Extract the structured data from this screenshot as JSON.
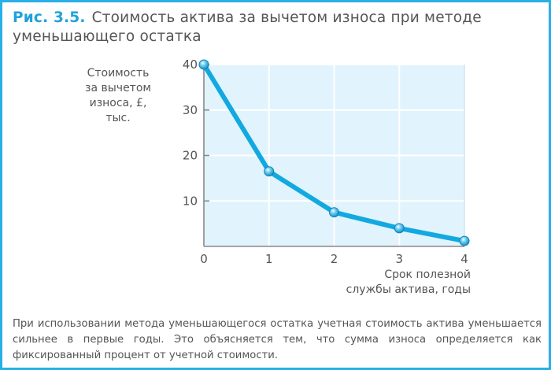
{
  "figure": {
    "number": "Рис. 3.5.",
    "title": "Стоимость актива за вычетом износа при методе уменьшающего остатка"
  },
  "colors": {
    "accent": "#29b0e6",
    "line": "#12a9e0",
    "plot_bg": "#e1f3fc",
    "grid": "#ffffff",
    "axis": "#888888",
    "text": "#555555"
  },
  "chart_data": {
    "type": "line",
    "title": "Стоимость актива за вычетом износа при методе уменьшающего остатка",
    "xlabel": "Срок полезной службы актива, годы",
    "ylabel": "Стоимость за вычетом износа, £, тыс.",
    "x": [
      0,
      1,
      2,
      3,
      4
    ],
    "series": [
      {
        "name": "Стоимость за вычетом износа",
        "values": [
          40,
          16.5,
          7.5,
          4,
          1.2
        ]
      }
    ],
    "x_ticks": [
      "0",
      "1",
      "2",
      "3",
      "4"
    ],
    "y_ticks": [
      "10",
      "20",
      "30",
      "40"
    ],
    "xlim": [
      0,
      4
    ],
    "ylim": [
      0,
      40
    ],
    "grid": true,
    "legend": "none"
  },
  "labels": {
    "ylabel_lines": [
      "Стоимость",
      "за вычетом",
      "износа, £, тыс."
    ],
    "xlabel_lines": [
      "Срок полезной",
      "службы актива, годы"
    ]
  },
  "caption": "При использовании метода уменьшающегося остатка учетная стоимость актива уменьшается сильнее в первые годы. Это объясняется тем, что сумма износа определяется как фиксированный процент от учетной стоимости."
}
